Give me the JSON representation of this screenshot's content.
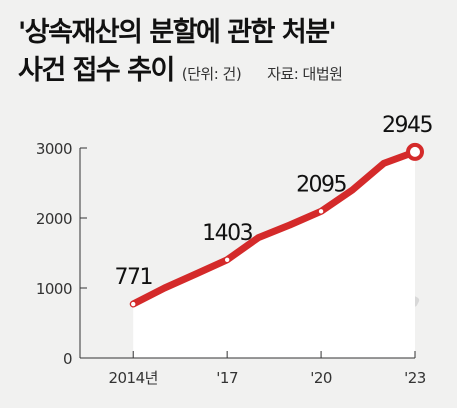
{
  "header": {
    "title_line1": "'상속재산의 분할에 관한 처분'",
    "title_line2": "사건 접수 추이",
    "unit": "(단위: 건)",
    "source": "자료: 대법원"
  },
  "chart_data": {
    "type": "line",
    "title": "'상속재산의 분할에 관한 처분' 사건 접수 추이",
    "unit": "(단위: 건)",
    "source": "자료: 대법원",
    "x": [
      2014,
      2015,
      2016,
      2017,
      2018,
      2019,
      2020,
      2021,
      2022,
      2023
    ],
    "series": [
      {
        "values": [
          771,
          1000,
          1200,
          1403,
          1720,
          1900,
          2095,
          2400,
          2780,
          2945
        ]
      }
    ],
    "data_labels": [
      {
        "x": 2014,
        "text": "771"
      },
      {
        "x": 2017,
        "text": "1403"
      },
      {
        "x": 2020,
        "text": "2095"
      },
      {
        "x": 2023,
        "text": "2945"
      }
    ],
    "x_ticks": [
      {
        "x": 2014,
        "label": "2014년"
      },
      {
        "x": 2017,
        "label": "'17"
      },
      {
        "x": 2020,
        "label": "'20"
      },
      {
        "x": 2023,
        "label": "'23"
      }
    ],
    "y_ticks": [
      0,
      1000,
      2000,
      3000
    ],
    "ylim": [
      0,
      3000
    ],
    "xlim": [
      2012.3,
      2023
    ],
    "grid": false,
    "line_color": "#d42a2a",
    "fill_color": "#ffffff",
    "background": "#f1f1f0"
  }
}
